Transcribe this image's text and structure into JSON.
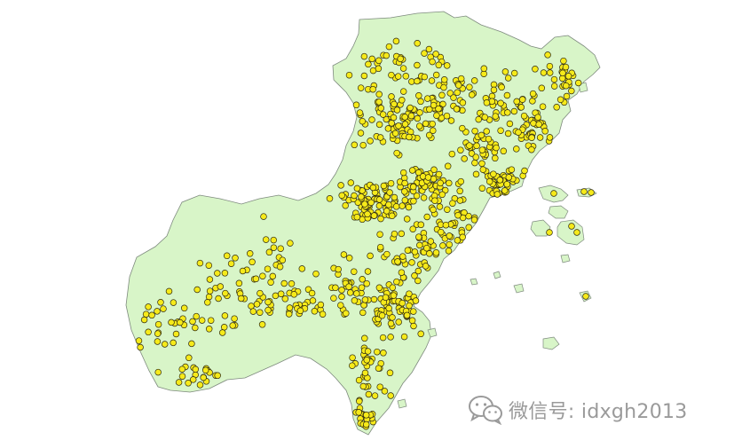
{
  "map": {
    "land_color": "#d8f5c8",
    "border_color": "#7e8a7e",
    "marker_color": "#f6ea1a",
    "marker_outline": "#2e2a12",
    "marker_shape": "circle"
  },
  "watermark": {
    "icon": "wechat-icon",
    "text": "微信号: idxgh2013",
    "color": "#9a9a9a"
  }
}
